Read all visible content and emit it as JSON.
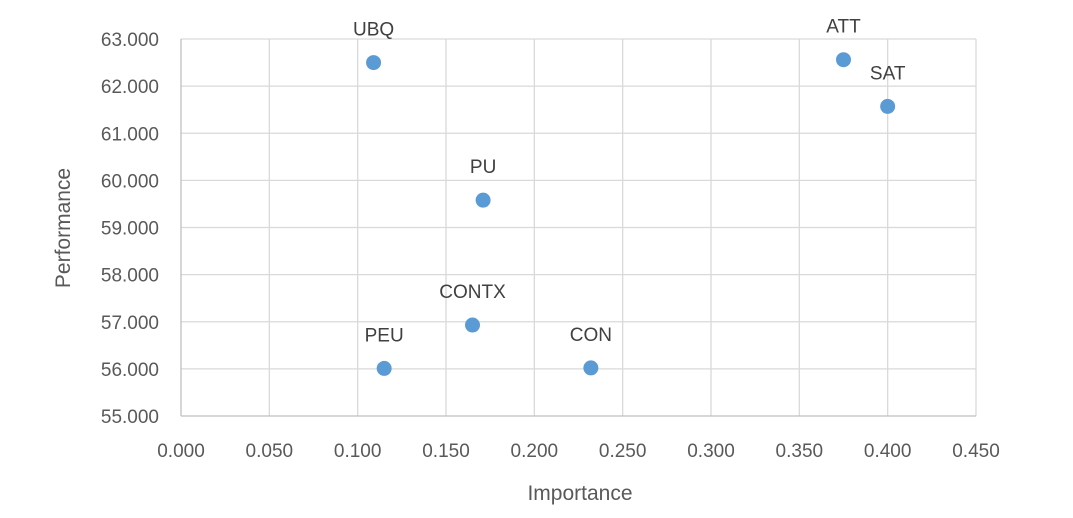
{
  "chart_data": {
    "type": "scatter",
    "xlabel": "Importance",
    "ylabel": "Performance",
    "xlim": [
      0.0,
      0.45
    ],
    "ylim": [
      55.0,
      63.0
    ],
    "x_ticks": [
      "0.000",
      "0.050",
      "0.100",
      "0.150",
      "0.200",
      "0.250",
      "0.300",
      "0.350",
      "0.400",
      "0.450"
    ],
    "y_ticks": [
      "55.000",
      "56.000",
      "57.000",
      "58.000",
      "59.000",
      "60.000",
      "61.000",
      "62.000",
      "63.000"
    ],
    "grid": true,
    "marker_color": "#5b9bd5",
    "points": [
      {
        "label": "UBQ",
        "x": 0.109,
        "y": 62.5
      },
      {
        "label": "ATT",
        "x": 0.375,
        "y": 62.56
      },
      {
        "label": "SAT",
        "x": 0.4,
        "y": 61.57
      },
      {
        "label": "PU",
        "x": 0.171,
        "y": 59.58
      },
      {
        "label": "CONTX",
        "x": 0.165,
        "y": 56.93
      },
      {
        "label": "PEU",
        "x": 0.115,
        "y": 56.01
      },
      {
        "label": "CON",
        "x": 0.232,
        "y": 56.02
      }
    ]
  }
}
